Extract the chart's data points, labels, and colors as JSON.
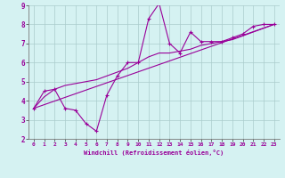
{
  "xlabel": "Windchill (Refroidissement éolien,°C)",
  "bg_color": "#d5f2f2",
  "grid_color": "#aacccc",
  "line_color": "#990099",
  "xlim": [
    -0.5,
    23.5
  ],
  "ylim": [
    2,
    9
  ],
  "xticks": [
    0,
    1,
    2,
    3,
    4,
    5,
    6,
    7,
    8,
    9,
    10,
    11,
    12,
    13,
    14,
    15,
    16,
    17,
    18,
    19,
    20,
    21,
    22,
    23
  ],
  "yticks": [
    2,
    3,
    4,
    5,
    6,
    7,
    8,
    9
  ],
  "jagged_x": [
    0,
    1,
    2,
    3,
    4,
    5,
    6,
    7,
    8,
    9,
    10,
    11,
    12,
    13,
    14,
    15,
    16,
    17,
    18,
    19,
    20,
    21,
    22,
    23
  ],
  "jagged_y": [
    3.6,
    4.5,
    4.6,
    3.6,
    3.5,
    2.8,
    2.4,
    4.3,
    5.3,
    6.0,
    6.0,
    8.3,
    9.1,
    7.0,
    6.5,
    7.6,
    7.1,
    7.1,
    7.1,
    7.3,
    7.5,
    7.9,
    8.0,
    8.0
  ],
  "smooth_x": [
    0,
    1,
    2,
    3,
    4,
    5,
    6,
    7,
    8,
    9,
    10,
    11,
    12,
    13,
    14,
    15,
    16,
    17,
    18,
    19,
    20,
    21,
    22,
    23
  ],
  "smooth_y": [
    3.6,
    4.2,
    4.6,
    4.8,
    4.9,
    5.0,
    5.1,
    5.3,
    5.5,
    5.7,
    6.0,
    6.3,
    6.5,
    6.5,
    6.6,
    6.7,
    6.9,
    7.0,
    7.1,
    7.2,
    7.4,
    7.6,
    7.8,
    8.0
  ],
  "line_x": [
    0,
    23
  ],
  "line_y": [
    3.6,
    8.0
  ]
}
